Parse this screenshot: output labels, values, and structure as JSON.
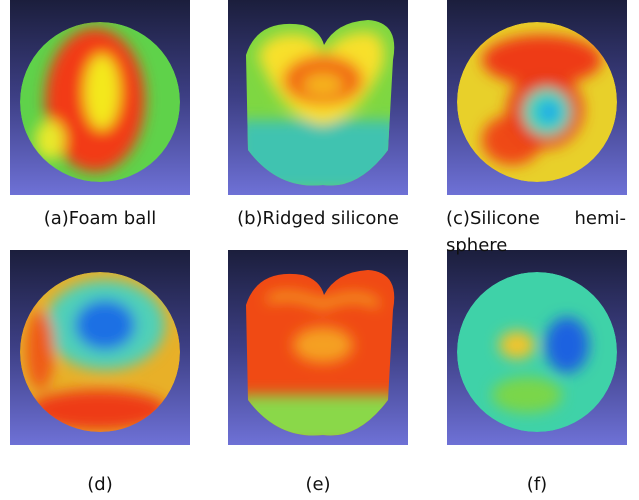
{
  "figures": [
    {
      "caption_lines": [
        "(a)Foam ball"
      ]
    },
    {
      "caption_lines": [
        "(b)Ridged silicone"
      ]
    },
    {
      "caption_lines": [
        "(c)Silicone hemi-",
        "sphere"
      ]
    },
    {
      "caption_lines": [
        "(d)"
      ]
    },
    {
      "caption_lines": [
        "(e)"
      ]
    },
    {
      "caption_lines": [
        "(f)"
      ]
    }
  ]
}
